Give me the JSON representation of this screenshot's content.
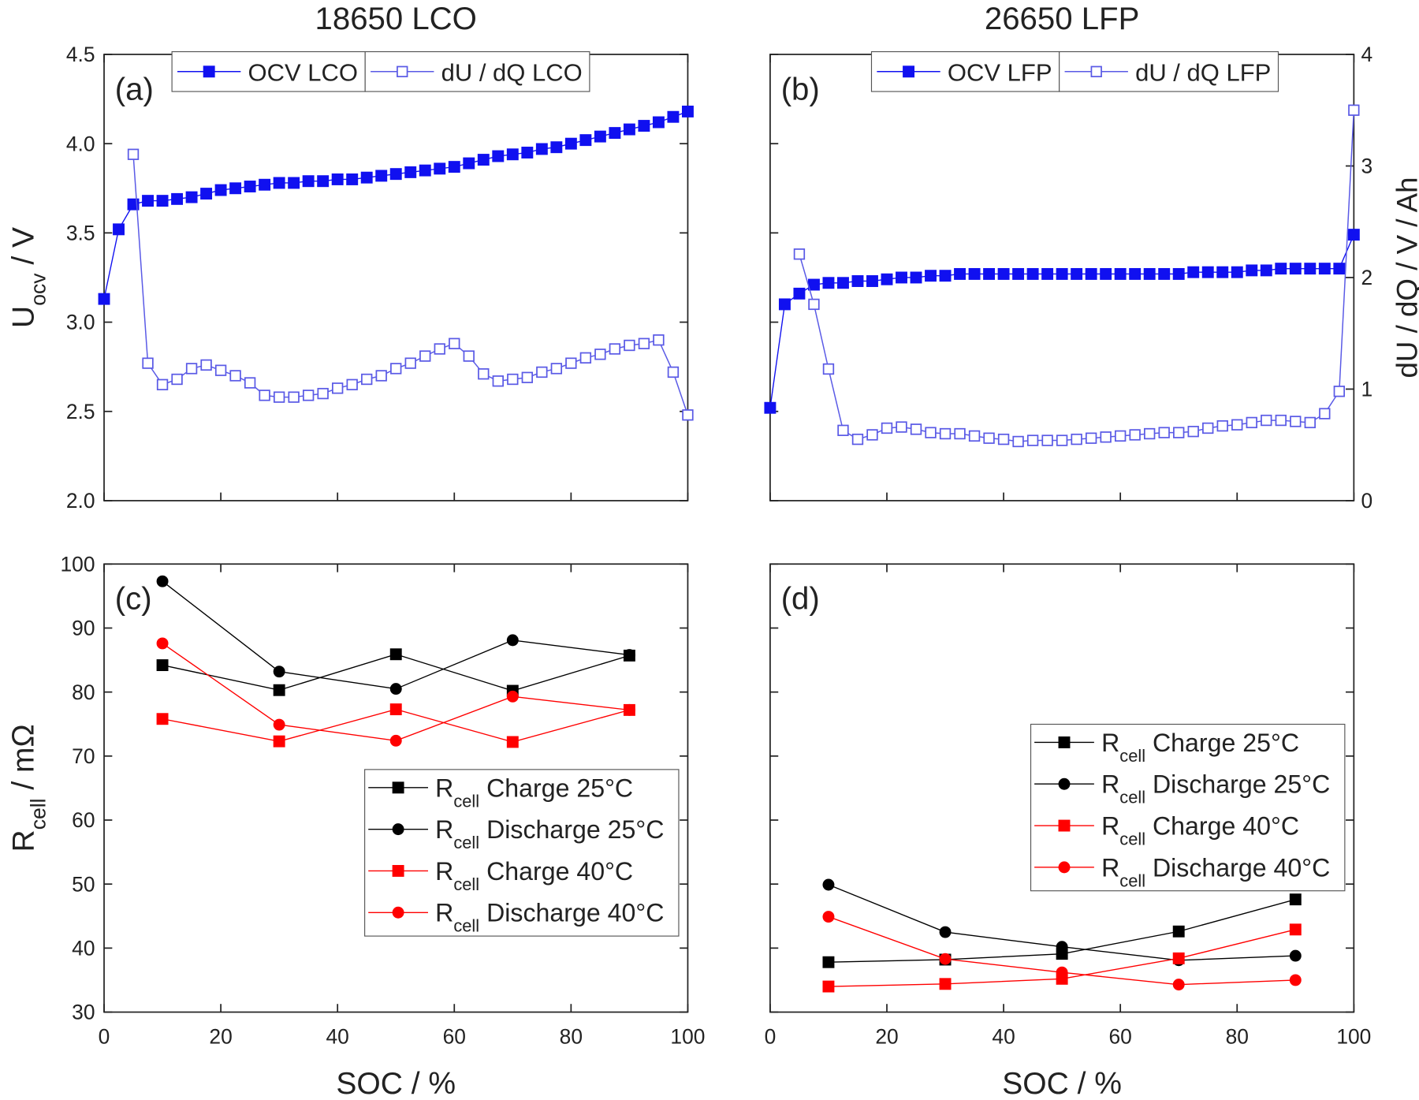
{
  "chart_data": [
    {
      "type": "line",
      "title": "18650 LCO",
      "panel_label": "(a)",
      "ylabel": {
        "base": "U",
        "sub": "ocv",
        "text": " / V"
      },
      "xlim": [
        0,
        100
      ],
      "xticks": [
        0,
        20,
        40,
        60,
        80,
        100
      ],
      "xtick_labels": false,
      "ylim": [
        2.0,
        4.5
      ],
      "yticks": [
        {
          "value": 2.0,
          "label": "2.0"
        },
        2.5,
        {
          "value": 3.0,
          "label": "3.0"
        },
        3.5,
        {
          "value": 4.0,
          "label": "4.0"
        },
        4.5
      ],
      "legend": "upper center",
      "series": [
        {
          "name": "OCV LCO",
          "color": "#1010f0",
          "marker": "square",
          "x": [
            0,
            2.5,
            5,
            7.5,
            10,
            12.5,
            15,
            17.5,
            20,
            22.5,
            25,
            27.5,
            30,
            32.5,
            35,
            37.5,
            40,
            42.5,
            45,
            47.5,
            50,
            52.5,
            55,
            57.5,
            60,
            62.5,
            65,
            67.5,
            70,
            72.5,
            75,
            77.5,
            80,
            82.5,
            85,
            87.5,
            90,
            92.5,
            95,
            97.5,
            100
          ],
          "values": [
            3.13,
            3.52,
            3.66,
            3.68,
            3.68,
            3.69,
            3.7,
            3.72,
            3.74,
            3.75,
            3.76,
            3.77,
            3.78,
            3.78,
            3.79,
            3.79,
            3.8,
            3.8,
            3.81,
            3.82,
            3.83,
            3.84,
            3.85,
            3.86,
            3.87,
            3.89,
            3.91,
            3.93,
            3.94,
            3.95,
            3.97,
            3.98,
            4.0,
            4.02,
            4.04,
            4.06,
            4.08,
            4.1,
            4.12,
            4.15,
            4.18
          ]
        },
        {
          "name": "dU / dQ LCO",
          "color": "#5a5ae6",
          "marker": "square-open",
          "x": [
            5,
            7.5,
            10,
            12.5,
            15,
            17.5,
            20,
            22.5,
            25,
            27.5,
            30,
            32.5,
            35,
            37.5,
            40,
            42.5,
            45,
            47.5,
            50,
            52.5,
            55,
            57.5,
            60,
            62.5,
            65,
            67.5,
            70,
            72.5,
            75,
            77.5,
            80,
            82.5,
            85,
            87.5,
            90,
            92.5,
            95,
            97.5,
            100
          ],
          "values": [
            3.94,
            2.77,
            2.65,
            2.68,
            2.74,
            2.76,
            2.73,
            2.7,
            2.66,
            2.59,
            2.58,
            2.58,
            2.59,
            2.6,
            2.63,
            2.65,
            2.68,
            2.7,
            2.74,
            2.77,
            2.81,
            2.85,
            2.88,
            2.81,
            2.71,
            2.67,
            2.68,
            2.69,
            2.72,
            2.74,
            2.77,
            2.8,
            2.82,
            2.85,
            2.87,
            2.88,
            2.9,
            2.72,
            2.48
          ]
        }
      ]
    },
    {
      "type": "line",
      "title": "26650 LFP",
      "panel_label": "(b)",
      "y2label": "dU / dQ / V / Ah",
      "xlim": [
        0,
        100
      ],
      "xticks": [
        0,
        20,
        40,
        60,
        80,
        100
      ],
      "xtick_labels": false,
      "ylim": [
        2.0,
        4.5
      ],
      "yticks": [
        2.0,
        2.5,
        3.0,
        3.5,
        4.0,
        4.5
      ],
      "ytick_labels": false,
      "y2lim": [
        0,
        4
      ],
      "y2ticks": [
        0,
        1,
        2,
        3,
        4
      ],
      "legend": "upper right",
      "series": [
        {
          "name": "OCV LFP",
          "color": "#1010f0",
          "marker": "square",
          "x": [
            0,
            2.5,
            5,
            7.5,
            10,
            12.5,
            15,
            17.5,
            20,
            22.5,
            25,
            27.5,
            30,
            32.5,
            35,
            37.5,
            40,
            42.5,
            45,
            47.5,
            50,
            52.5,
            55,
            57.5,
            60,
            62.5,
            65,
            67.5,
            70,
            72.5,
            75,
            77.5,
            80,
            82.5,
            85,
            87.5,
            90,
            92.5,
            95,
            97.5,
            100
          ],
          "values": [
            2.52,
            3.1,
            3.16,
            3.21,
            3.22,
            3.22,
            3.23,
            3.23,
            3.24,
            3.25,
            3.25,
            3.26,
            3.26,
            3.27,
            3.27,
            3.27,
            3.27,
            3.27,
            3.27,
            3.27,
            3.27,
            3.27,
            3.27,
            3.27,
            3.27,
            3.27,
            3.27,
            3.27,
            3.27,
            3.28,
            3.28,
            3.28,
            3.28,
            3.29,
            3.29,
            3.3,
            3.3,
            3.3,
            3.3,
            3.3,
            3.49
          ]
        },
        {
          "name": "dU / dQ LFP",
          "color": "#5a5ae6",
          "marker": "square-open",
          "axis": "y2",
          "x": [
            5,
            7.5,
            10,
            12.5,
            15,
            17.5,
            20,
            22.5,
            25,
            27.5,
            30,
            32.5,
            35,
            37.5,
            40,
            42.5,
            45,
            47.5,
            50,
            52.5,
            55,
            57.5,
            60,
            62.5,
            65,
            67.5,
            70,
            72.5,
            75,
            77.5,
            80,
            82.5,
            85,
            87.5,
            90,
            92.5,
            95,
            97.5,
            100
          ],
          "values": [
            2.21,
            1.76,
            1.18,
            0.63,
            0.55,
            0.59,
            0.65,
            0.66,
            0.64,
            0.61,
            0.6,
            0.6,
            0.58,
            0.56,
            0.55,
            0.53,
            0.54,
            0.54,
            0.54,
            0.55,
            0.56,
            0.57,
            0.58,
            0.59,
            0.6,
            0.61,
            0.61,
            0.62,
            0.65,
            0.67,
            0.68,
            0.7,
            0.72,
            0.72,
            0.71,
            0.7,
            0.78,
            0.98,
            3.5
          ]
        }
      ]
    },
    {
      "type": "line",
      "panel_label": "(c)",
      "xlabel": "SOC / %",
      "ylabel": {
        "base": "R",
        "sub": "cell",
        "text": " / mΩ"
      },
      "xlim": [
        0,
        100
      ],
      "xticks": [
        0,
        20,
        40,
        60,
        80,
        100
      ],
      "ylim": [
        30,
        100
      ],
      "yticks": [
        30,
        40,
        50,
        60,
        70,
        80,
        90,
        100
      ],
      "legend": "lower right",
      "series": [
        {
          "name": {
            "base": "R",
            "sub": "cell",
            "text": " Charge 25°C"
          },
          "color": "#000000",
          "marker": "square",
          "x": [
            10,
            30,
            50,
            70,
            90
          ],
          "values": [
            84.2,
            80.3,
            85.9,
            80.2,
            85.7
          ]
        },
        {
          "name": {
            "base": "R",
            "sub": "cell",
            "text": " Discharge 25°C"
          },
          "color": "#000000",
          "marker": "circle",
          "x": [
            10,
            30,
            50,
            70,
            90
          ],
          "values": [
            97.3,
            83.2,
            80.5,
            88.1,
            85.8
          ]
        },
        {
          "name": {
            "base": "R",
            "sub": "cell",
            "text": " Charge 40°C"
          },
          "color": "#ff0000",
          "marker": "square",
          "x": [
            10,
            30,
            50,
            70,
            90
          ],
          "values": [
            75.8,
            72.3,
            77.3,
            72.2,
            77.2
          ]
        },
        {
          "name": {
            "base": "R",
            "sub": "cell",
            "text": " Discharge 40°C"
          },
          "color": "#ff0000",
          "marker": "circle",
          "x": [
            10,
            30,
            50,
            70,
            90
          ],
          "values": [
            87.6,
            74.9,
            72.4,
            79.3,
            77.2
          ]
        }
      ]
    },
    {
      "type": "line",
      "panel_label": "(d)",
      "xlabel": "SOC / %",
      "xlim": [
        0,
        100
      ],
      "xticks": [
        0,
        20,
        40,
        60,
        80,
        100
      ],
      "ylim": [
        30,
        100
      ],
      "yticks": [
        30,
        40,
        50,
        60,
        70,
        80,
        90,
        100
      ],
      "ytick_labels": false,
      "legend": "center right",
      "series": [
        {
          "name": {
            "base": "R",
            "sub": "cell",
            "text": " Charge 25°C"
          },
          "color": "#000000",
          "marker": "square",
          "x": [
            10,
            30,
            50,
            70,
            90
          ],
          "values": [
            37.8,
            38.2,
            39.1,
            42.6,
            47.6
          ]
        },
        {
          "name": {
            "base": "R",
            "sub": "cell",
            "text": " Discharge 25°C"
          },
          "color": "#000000",
          "marker": "circle",
          "x": [
            10,
            30,
            50,
            70,
            90
          ],
          "values": [
            49.9,
            42.5,
            40.2,
            38.1,
            38.8
          ]
        },
        {
          "name": {
            "base": "R",
            "sub": "cell",
            "text": " Charge 40°C"
          },
          "color": "#ff0000",
          "marker": "square",
          "x": [
            10,
            30,
            50,
            70,
            90
          ],
          "values": [
            34.0,
            34.4,
            35.2,
            38.4,
            42.9
          ]
        },
        {
          "name": {
            "base": "R",
            "sub": "cell",
            "text": " Discharge 40°C"
          },
          "color": "#ff0000",
          "marker": "circle",
          "x": [
            10,
            30,
            50,
            70,
            90
          ],
          "values": [
            44.9,
            38.3,
            36.2,
            34.3,
            35.0
          ]
        }
      ]
    }
  ]
}
